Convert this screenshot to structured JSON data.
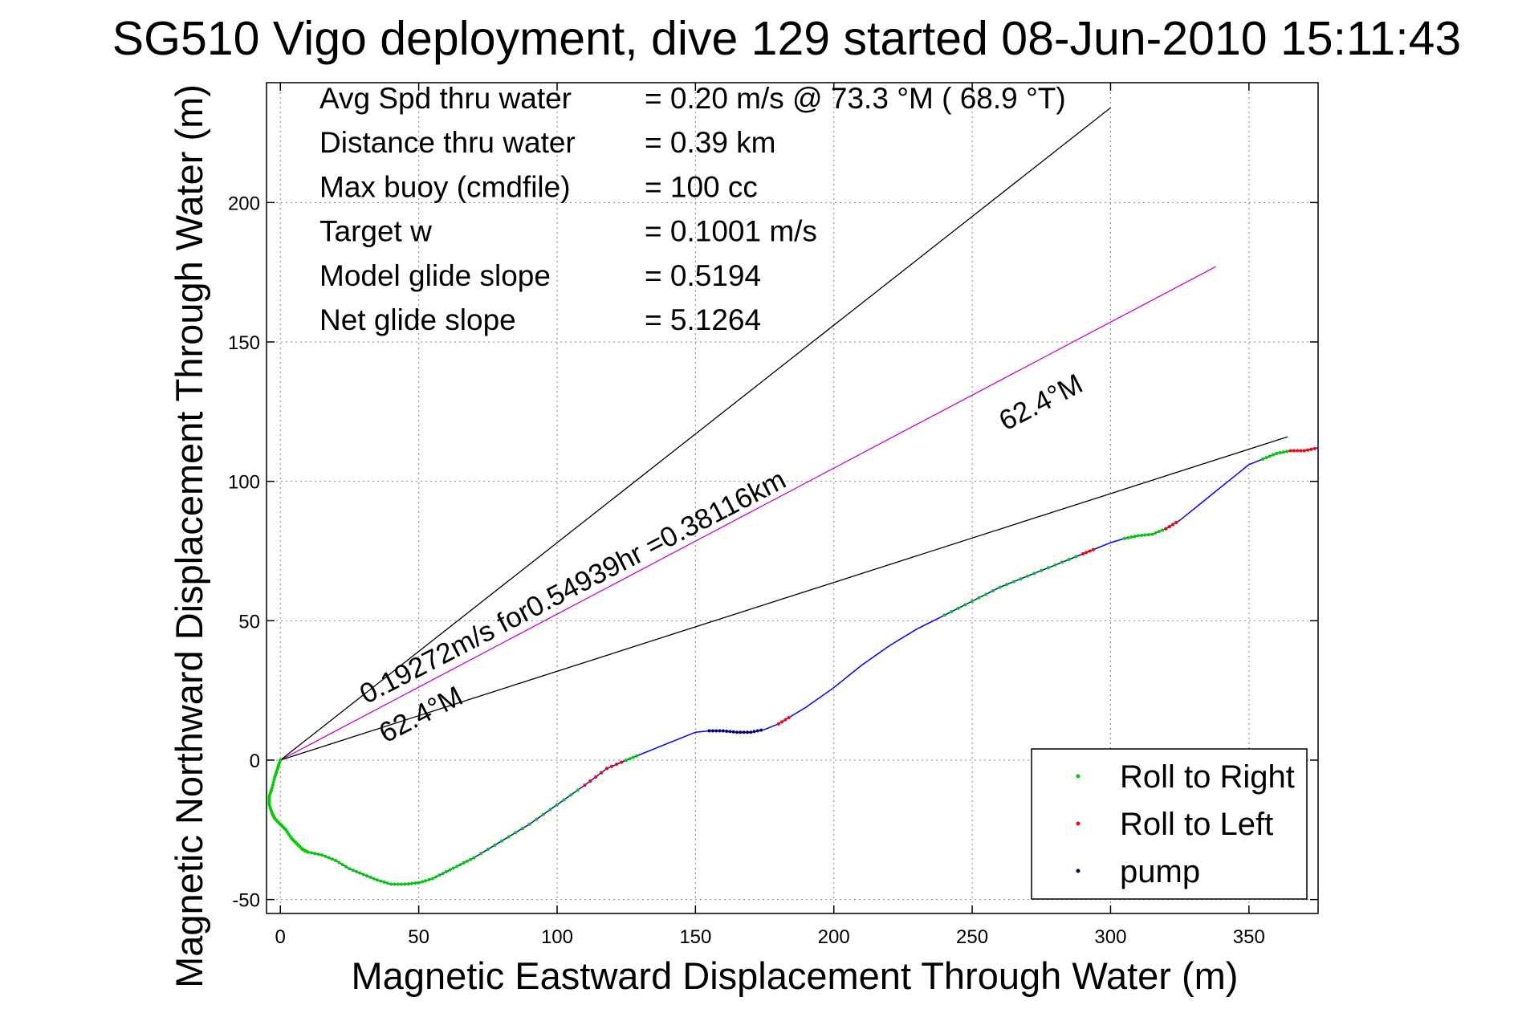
{
  "chart_data": {
    "type": "line",
    "title": "SG510 Vigo deployment, dive 129 started 08-Jun-2010 15:11:43",
    "xlabel": "Magnetic Eastward Displacement Through Water (m)",
    "ylabel": "Magnetic Northward Displacement Through Water (m)",
    "xlim": [
      -5,
      375
    ],
    "ylim": [
      -55,
      243
    ],
    "xticks": [
      0,
      50,
      100,
      150,
      200,
      250,
      300,
      350
    ],
    "yticks": [
      -50,
      0,
      50,
      100,
      150,
      200
    ],
    "grid": true,
    "legend_position": "bottom-right",
    "info_lines": [
      {
        "label": "Avg Spd thru water",
        "value": "=  0.20 m/s @  73.3 °M ( 68.9 °T)"
      },
      {
        "label": "Distance thru water",
        "value": "=  0.39 km"
      },
      {
        "label": "Max buoy (cmdfile)",
        "value": "= 100 cc"
      },
      {
        "label": "Target w",
        "value": "= 0.1001 m/s"
      },
      {
        "label": "Model glide slope",
        "value": "= 0.5194"
      },
      {
        "label": "Net glide slope",
        "value": "= 5.1264"
      }
    ],
    "annotations": {
      "speed_line_label": "0.19272m/s for0.54939hr =0.38116km",
      "heading_label_upper": "62.4°M",
      "heading_label_lower": "62.4°M"
    },
    "reference_lines": [
      {
        "name": "upper-bound",
        "color": "#000000",
        "x": [
          0,
          300
        ],
        "y": [
          0,
          234
        ]
      },
      {
        "name": "net-displacement",
        "color": "#cc00cc",
        "x": [
          0,
          338
        ],
        "y": [
          0,
          177
        ]
      },
      {
        "name": "lower-bound",
        "color": "#000000",
        "x": [
          0,
          364
        ],
        "y": [
          0,
          116
        ]
      }
    ],
    "series": [
      {
        "name": "track",
        "color": "#0000ff",
        "x": [
          0,
          -1,
          -2,
          -3,
          -4,
          -4,
          -3,
          -2,
          0,
          2,
          4,
          6,
          8,
          10,
          15,
          20,
          25,
          30,
          35,
          40,
          45,
          50,
          55,
          60,
          65,
          70,
          80,
          90,
          100,
          110,
          118,
          125,
          130,
          135,
          140,
          145,
          150,
          155,
          160,
          165,
          170,
          175,
          180,
          185,
          190,
          200,
          210,
          220,
          230,
          240,
          250,
          260,
          270,
          280,
          290,
          295,
          300,
          305,
          310,
          315,
          320,
          325,
          330,
          335,
          340,
          345,
          350,
          355,
          360,
          365,
          370,
          375
        ],
        "y": [
          0,
          -3,
          -6,
          -10,
          -13,
          -16,
          -19,
          -21,
          -23,
          -25,
          -28,
          -30,
          -32,
          -33,
          -34,
          -36,
          -39,
          -41,
          -43,
          -44.5,
          -44.5,
          -44,
          -42.5,
          -40,
          -37.5,
          -35,
          -29,
          -23,
          -16,
          -9,
          -3,
          0,
          2,
          4,
          6,
          8,
          10,
          10.5,
          10.5,
          10,
          10,
          11,
          13,
          16,
          19,
          26,
          34,
          41,
          47,
          52,
          57,
          62,
          66,
          70,
          74,
          76,
          78,
          79.5,
          80.5,
          81,
          83,
          86,
          90,
          94,
          98,
          102,
          106,
          108,
          110,
          111,
          111,
          112
        ]
      }
    ],
    "marker_series": [
      {
        "name": "Roll to Right",
        "color": "#00cc00",
        "segments": [
          [
            0,
            32
          ],
          [
            49,
            54
          ],
          [
            57,
            61
          ],
          [
            67,
            69
          ]
        ]
      },
      {
        "name": "Roll to Left",
        "color": "#ff0000",
        "segments": [
          [
            29,
            31
          ],
          [
            42,
            43
          ],
          [
            54,
            55
          ],
          [
            60,
            61
          ],
          [
            69,
            71
          ]
        ]
      },
      {
        "name": "pump",
        "color": "#000066",
        "segments": [
          [
            37,
            41
          ]
        ]
      }
    ]
  }
}
